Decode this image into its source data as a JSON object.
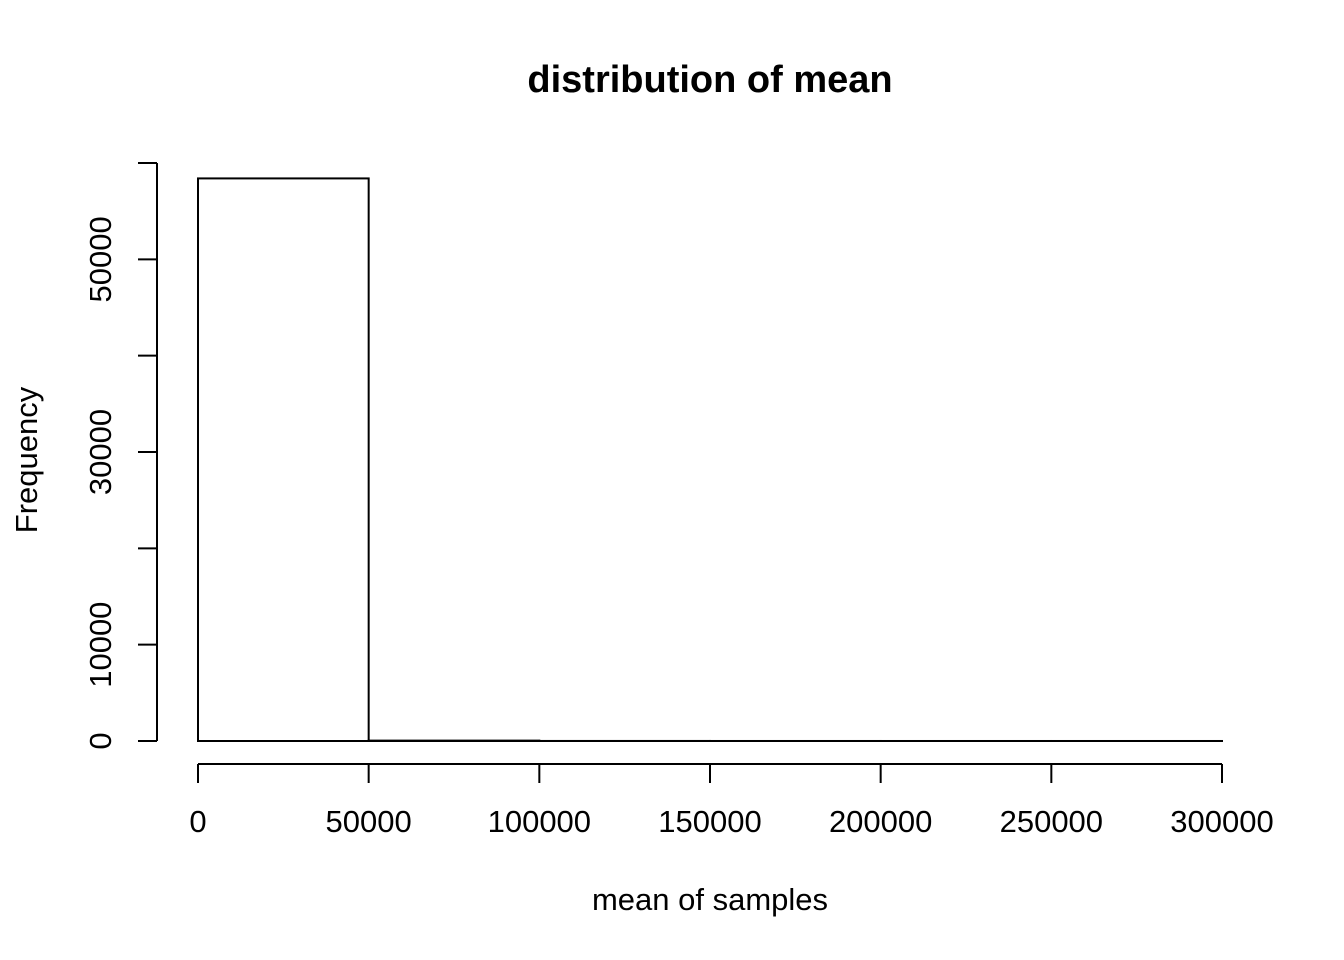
{
  "chart_data": {
    "type": "bar",
    "title": "distribution of mean",
    "xlabel": "mean of samples",
    "ylabel": "Frequency",
    "bins": [
      {
        "start": 0,
        "end": 50000,
        "count": 58400
      },
      {
        "start": 50000,
        "end": 100000,
        "count": 40
      },
      {
        "start": 100000,
        "end": 150000,
        "count": 5
      },
      {
        "start": 150000,
        "end": 200000,
        "count": 2
      },
      {
        "start": 200000,
        "end": 250000,
        "count": 1
      },
      {
        "start": 250000,
        "end": 300000,
        "count": 1
      }
    ],
    "xlim": [
      0,
      300000
    ],
    "ylim": [
      0,
      60000
    ],
    "x_ticks": [
      0,
      50000,
      100000,
      150000,
      200000,
      250000,
      300000
    ],
    "x_tick_labels": [
      "0",
      "50000",
      "100000",
      "150000",
      "200000",
      "250000",
      "300000"
    ],
    "y_ticks": [
      0,
      10000,
      20000,
      30000,
      40000,
      50000,
      60000
    ],
    "y_tick_labels": [
      "0",
      "10000",
      "",
      "30000",
      "",
      "50000",
      ""
    ],
    "grid": false,
    "legend": "none",
    "bar_fill": "#ffffff",
    "bar_stroke": "#000000"
  }
}
